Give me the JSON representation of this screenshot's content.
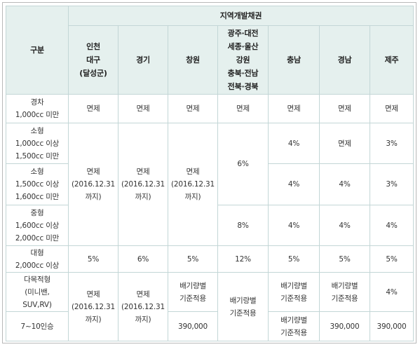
{
  "header": {
    "category": "구분",
    "group": "지역개발채권",
    "regions": [
      [
        "인천",
        "대구",
        "(달성군)"
      ],
      [
        "경기"
      ],
      [
        "창원"
      ],
      [
        "광주·대전",
        "세종·울산",
        "강원",
        "충북·전남",
        "전북·경북"
      ],
      [
        "충남"
      ],
      [
        "경남"
      ],
      [
        "제주"
      ]
    ]
  },
  "rows": {
    "compact": {
      "label": [
        "경차",
        "1,000cc 미만"
      ]
    },
    "small1": {
      "label": [
        "소형",
        "1,000cc 이상",
        "1,500cc 미만"
      ]
    },
    "small2": {
      "label": [
        "소형",
        "1,500cc 이상",
        "1,600cc 미만"
      ]
    },
    "mid": {
      "label": [
        "중형",
        "1,600cc 이상",
        "2,000cc 미만"
      ]
    },
    "large": {
      "label": [
        "대형",
        "2,000cc 이상"
      ]
    },
    "multi": {
      "label": [
        "다목적형",
        "(미니밴,",
        "SUV,RV)"
      ]
    },
    "seats": {
      "label": [
        "7~10인승"
      ]
    }
  },
  "values": {
    "exempt": "면제",
    "exempt_until": [
      "면제",
      "(2016.12.31",
      "까지)"
    ],
    "displacement_std": [
      "배기량별",
      "기준적용"
    ],
    "pct3": "3%",
    "pct4": "4%",
    "pct5": "5%",
    "pct6": "6%",
    "pct8": "8%",
    "pct12": "12%",
    "amount": "390,000"
  }
}
